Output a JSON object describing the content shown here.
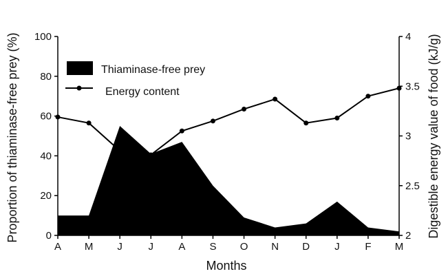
{
  "chart_data": {
    "type": "area",
    "categories": [
      "A",
      "M",
      "J",
      "J",
      "A",
      "S",
      "O",
      "N",
      "D",
      "J",
      "F",
      "M"
    ],
    "xlabel": "Months",
    "ylabel_left": "Proportion of thiaminase-free prey (%)",
    "ylabel_right": "Digestible energy value of food (kJ/g)",
    "ylim_left": [
      0,
      100
    ],
    "ylim_right": [
      2,
      4
    ],
    "yticks_left": [
      "0",
      "20",
      "40",
      "60",
      "80",
      "100"
    ],
    "yticks_right": [
      "2",
      "2.5",
      "3",
      "3.5",
      "4"
    ],
    "grid": false,
    "legend_position": "top-left",
    "series": [
      {
        "name": "Thiaminase-free prey",
        "kind": "area",
        "axis": "left",
        "color": "#000000",
        "values": [
          10,
          10,
          55,
          41,
          47,
          25,
          9,
          4,
          6,
          17,
          4,
          2
        ]
      },
      {
        "name": "Energy content",
        "kind": "line",
        "axis": "right",
        "color": "#000000",
        "values": [
          3.19,
          3.13,
          2.85,
          2.81,
          3.05,
          3.15,
          3.27,
          3.37,
          3.13,
          3.18,
          3.4,
          3.48
        ]
      }
    ]
  }
}
